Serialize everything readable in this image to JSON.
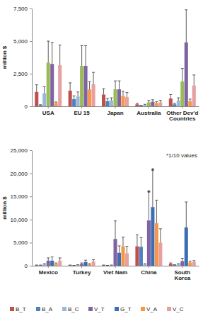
{
  "chart_data": [
    {
      "type": "bar",
      "y_label": "million $",
      "categories": [
        "USA",
        "EU 15",
        "Japan",
        "Australia",
        "Other Dev'd Countries"
      ],
      "ylim": [
        0,
        7500
      ],
      "yticks": [
        0,
        {
          "value": 2500,
          "label": "2,500"
        },
        {
          "value": 5000,
          "label": "5,000"
        },
        {
          "value": 7500,
          "label": "7,500"
        }
      ],
      "series": [
        {
          "color": "#C0504D",
          "values": [
            1100,
            1200,
            900,
            150,
            600
          ],
          "errors": [
            550,
            600,
            450,
            75,
            300
          ]
        },
        {
          "color": "#4F81BD",
          "values": [
            80,
            550,
            400,
            50,
            150
          ],
          "errors": [
            40,
            250,
            200,
            25,
            75
          ]
        },
        {
          "color": "#9BB7D9",
          "values": [
            1000,
            750,
            450,
            100,
            450
          ],
          "errors": [
            500,
            350,
            200,
            50,
            200
          ]
        },
        {
          "color": "#9BBB59",
          "values": [
            3350,
            3100,
            1300,
            300,
            1900
          ],
          "errors": [
            1650,
            1550,
            650,
            150,
            1000
          ]
        },
        {
          "color": "#8064A2",
          "values": [
            3250,
            3100,
            1300,
            350,
            4900
          ],
          "errors": [
            1650,
            1550,
            650,
            150,
            2500
          ]
        },
        {
          "color": "#F79646",
          "values": [
            250,
            1300,
            800,
            250,
            400
          ],
          "errors": [
            80,
            600,
            350,
            100,
            150
          ]
        },
        {
          "color": "#E6A0A0",
          "values": [
            3150,
            1700,
            700,
            300,
            1600
          ],
          "errors": [
            1550,
            900,
            350,
            150,
            800
          ]
        }
      ]
    },
    {
      "type": "bar",
      "y_label": "million $",
      "categories": [
        "Mexico",
        "Turkey",
        "Viet Nam",
        "China",
        "South Korea"
      ],
      "ylim": [
        0,
        25000
      ],
      "yticks": [
        0,
        {
          "value": 5000,
          "label": "5,000"
        },
        {
          "value": 10000,
          "label": "10,000"
        },
        {
          "value": 15000,
          "label": "15,000"
        },
        {
          "value": 20000,
          "label": "20,000"
        },
        {
          "value": 25000,
          "label": "25,000"
        }
      ],
      "legend": "bottom",
      "annotations": [
        {
          "text": "*1/10 values"
        },
        {
          "text": "*",
          "category": "China",
          "series": "V_T"
        },
        {
          "text": "*",
          "category": "China",
          "series": "G_T"
        }
      ],
      "series": [
        {
          "name": "B_T",
          "color": "#C0504D",
          "values": [
            100,
            100,
            100,
            4200,
            400
          ],
          "errors": [
            50,
            50,
            50,
            2500,
            200
          ]
        },
        {
          "name": "B_A",
          "color": "#4F81BD",
          "values": [
            100,
            50,
            50,
            4100,
            150
          ],
          "errors": [
            50,
            25,
            25,
            2000,
            75
          ]
        },
        {
          "name": "B_C",
          "color": "#9BB7D9",
          "values": [
            300,
            150,
            100,
            300,
            300
          ],
          "errors": [
            150,
            75,
            50,
            150,
            150
          ]
        },
        {
          "name": "V_T",
          "color": "#8064A2",
          "values": [
            1100,
            400,
            5800,
            9800,
            1000
          ],
          "errors": [
            600,
            200,
            3900,
            6200,
            600
          ]
        },
        {
          "name": "G_T",
          "color": "#3C6EB4",
          "values": [
            1100,
            800,
            2800,
            12700,
            8300
          ],
          "errors": [
            800,
            400,
            1500,
            8000,
            5500
          ]
        },
        {
          "name": "V_A",
          "color": "#F79646",
          "values": [
            400,
            300,
            4200,
            9200,
            700
          ],
          "errors": [
            200,
            150,
            2000,
            5000,
            300
          ]
        },
        {
          "name": "V_C",
          "color": "#E6A0A0",
          "values": [
            1100,
            900,
            2700,
            5000,
            800
          ],
          "errors": [
            600,
            400,
            1500,
            3000,
            300
          ]
        }
      ]
    }
  ]
}
